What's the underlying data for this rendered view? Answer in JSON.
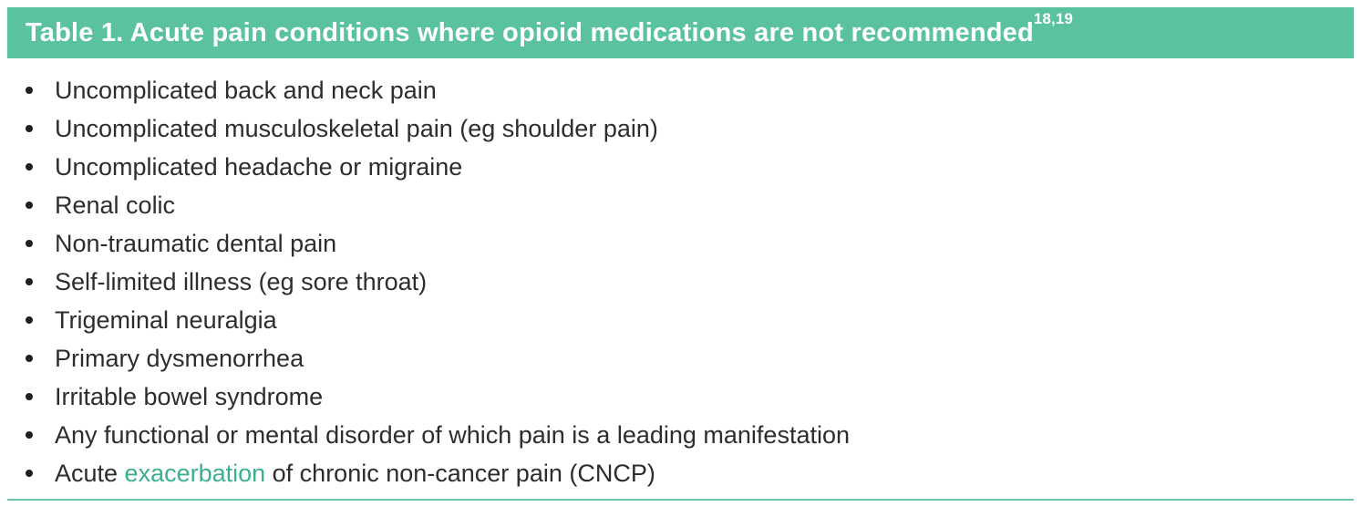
{
  "colors": {
    "header_bg": "#5bc2a0",
    "header_text": "#ffffff",
    "body_text": "#2d2d2d",
    "bullet": "#1f1f1f",
    "highlight_text": "#3bb08f",
    "bottom_rule": "#6cc7ae"
  },
  "table": {
    "title": "Table 1. Acute pain conditions where opioid medications are not recommended",
    "title_refs": "18,19",
    "items": [
      {
        "parts": [
          {
            "text": "Uncomplicated back and neck pain"
          }
        ]
      },
      {
        "parts": [
          {
            "text": "Uncomplicated musculoskeletal pain (eg shoulder pain)"
          }
        ]
      },
      {
        "parts": [
          {
            "text": "Uncomplicated headache or migraine"
          }
        ]
      },
      {
        "parts": [
          {
            "text": "Renal colic"
          }
        ]
      },
      {
        "parts": [
          {
            "text": "Non-traumatic dental pain"
          }
        ]
      },
      {
        "parts": [
          {
            "text": "Self-limited illness (eg sore throat)"
          }
        ]
      },
      {
        "parts": [
          {
            "text": "Trigeminal neuralgia"
          }
        ]
      },
      {
        "parts": [
          {
            "text": "Primary dysmenorrhea"
          }
        ]
      },
      {
        "parts": [
          {
            "text": "Irritable bowel syndrome"
          }
        ]
      },
      {
        "parts": [
          {
            "text": "Any functional or mental disorder of which pain is a leading manifestation"
          }
        ]
      },
      {
        "parts": [
          {
            "text": "Acute "
          },
          {
            "text": "exacerbation",
            "highlight": true
          },
          {
            "text": " of chronic non-cancer pain (CNCP)"
          }
        ]
      }
    ]
  }
}
